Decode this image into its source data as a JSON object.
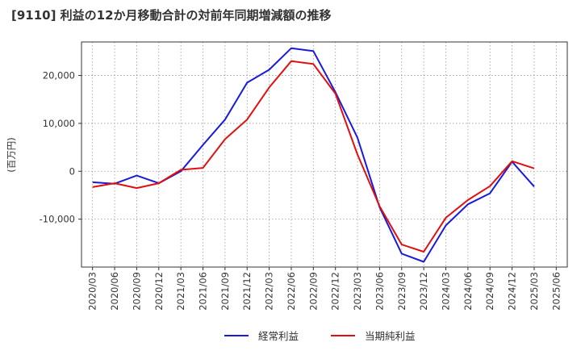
{
  "chart_data": {
    "type": "line",
    "title": "[9110]  利益の12か月移動合計の対前年同期増減額の推移",
    "ylabel": "(百万円)",
    "xlabel": "",
    "ylim": [
      -20000,
      27000
    ],
    "yticks": [
      20000,
      10000,
      0,
      -10000
    ],
    "ytick_labels": [
      "20,000",
      "10,000",
      "0",
      "-10,000"
    ],
    "grid": true,
    "legend_position": "bottom-center",
    "categories": [
      "2020/03",
      "2020/06",
      "2020/09",
      "2020/12",
      "2021/03",
      "2021/06",
      "2021/09",
      "2021/12",
      "2022/03",
      "2022/06",
      "2022/09",
      "2022/12",
      "2023/03",
      "2023/06",
      "2023/09",
      "2023/12",
      "2024/03",
      "2024/06",
      "2024/09",
      "2024/12",
      "2025/03",
      "2025/06"
    ],
    "series": [
      {
        "name": "経常利益",
        "color": "#1a1adb",
        "values": [
          -2300,
          -2600,
          -900,
          -2500,
          0,
          5500,
          10800,
          18500,
          21200,
          25700,
          25100,
          16500,
          7000,
          -7500,
          -17200,
          -18900,
          -11300,
          -6900,
          -4600,
          2000,
          -3200,
          null
        ]
      },
      {
        "name": "当期純利益",
        "color": "#e01010",
        "values": [
          -3300,
          -2500,
          -3500,
          -2500,
          300,
          700,
          6700,
          10800,
          17500,
          23000,
          22400,
          16200,
          3500,
          -7300,
          -15300,
          -16800,
          -9700,
          -6000,
          -3100,
          2100,
          600,
          null
        ]
      }
    ]
  }
}
